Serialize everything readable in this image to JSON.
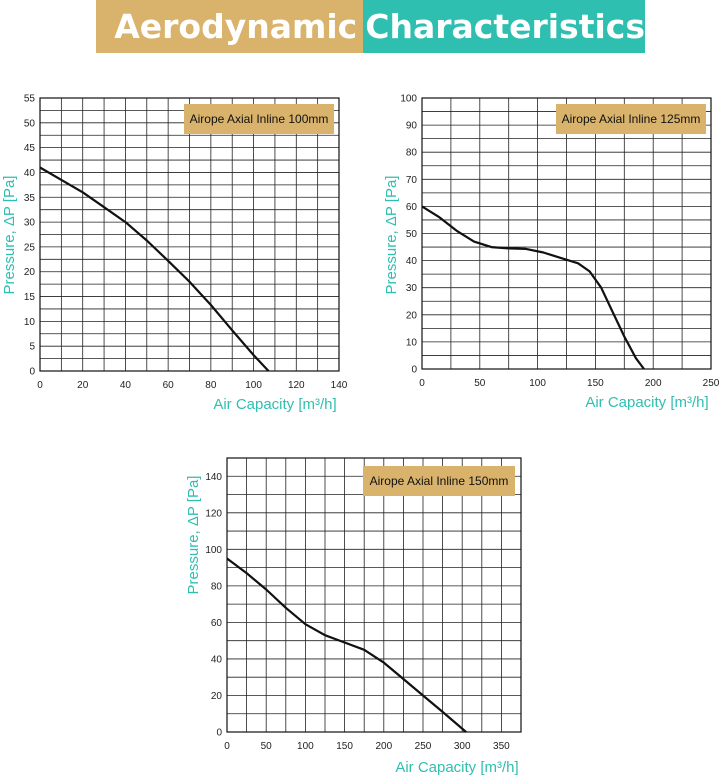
{
  "header": {
    "title_left": "Aerodynamic",
    "title_right": "Characteristics",
    "left_color": "#d9b26b",
    "right_color": "#2fbfb1"
  },
  "chart_data": [
    {
      "type": "line",
      "title": "Airope Axial Inline 100mm",
      "xlabel": "Air Capacity [m³/h]",
      "ylabel": "Pressure, ΔP [Pa]",
      "xlim": [
        0,
        140
      ],
      "ylim": [
        0,
        55
      ],
      "x_ticks": [
        0,
        20,
        40,
        60,
        80,
        100,
        120,
        140
      ],
      "y_ticks": [
        0,
        5,
        10,
        15,
        20,
        25,
        30,
        35,
        40,
        45,
        50,
        55
      ],
      "grid": true,
      "legend_placement": "top-right",
      "series": [
        {
          "x": [
            0,
            10,
            20,
            30,
            40,
            50,
            60,
            70,
            80,
            90,
            100,
            107
          ],
          "y": [
            41,
            38.5,
            36,
            33,
            30,
            26.3,
            22.2,
            18,
            13.3,
            8.2,
            3.2,
            0
          ]
        }
      ]
    },
    {
      "type": "line",
      "title": "Airope Axial Inline 125mm",
      "xlabel": "Air Capacity [m³/h]",
      "ylabel": "Pressure, ΔP [Pa]",
      "xlim": [
        0,
        250
      ],
      "ylim": [
        0,
        100
      ],
      "x_ticks": [
        0,
        50,
        100,
        150,
        200,
        250
      ],
      "y_ticks": [
        0,
        10,
        20,
        30,
        40,
        50,
        60,
        70,
        80,
        90,
        100
      ],
      "grid": true,
      "legend_placement": "top-right",
      "series": [
        {
          "x": [
            0,
            15,
            30,
            45,
            60,
            75,
            90,
            105,
            120,
            135,
            145,
            155,
            165,
            175,
            185,
            192
          ],
          "y": [
            60,
            56,
            51,
            47,
            45,
            44.5,
            44.3,
            43,
            41,
            39,
            36,
            30,
            21,
            12,
            4,
            0
          ]
        }
      ]
    },
    {
      "type": "line",
      "title": "Airope Axial Inline 150mm",
      "xlabel": "Air Capacity [m³/h]",
      "ylabel": "Pressure, ΔP [Pa]",
      "xlim": [
        0,
        375
      ],
      "ylim": [
        0,
        150
      ],
      "x_ticks": [
        0,
        50,
        100,
        150,
        200,
        250,
        300,
        350
      ],
      "y_ticks": [
        0,
        20,
        40,
        60,
        80,
        100,
        120,
        140
      ],
      "grid": true,
      "legend_placement": "top-right",
      "series": [
        {
          "x": [
            0,
            25,
            50,
            75,
            100,
            125,
            150,
            175,
            200,
            225,
            250,
            275,
            305
          ],
          "y": [
            95,
            87,
            78,
            68,
            59,
            53,
            49,
            45,
            38,
            29,
            20,
            11,
            0
          ]
        }
      ]
    }
  ]
}
